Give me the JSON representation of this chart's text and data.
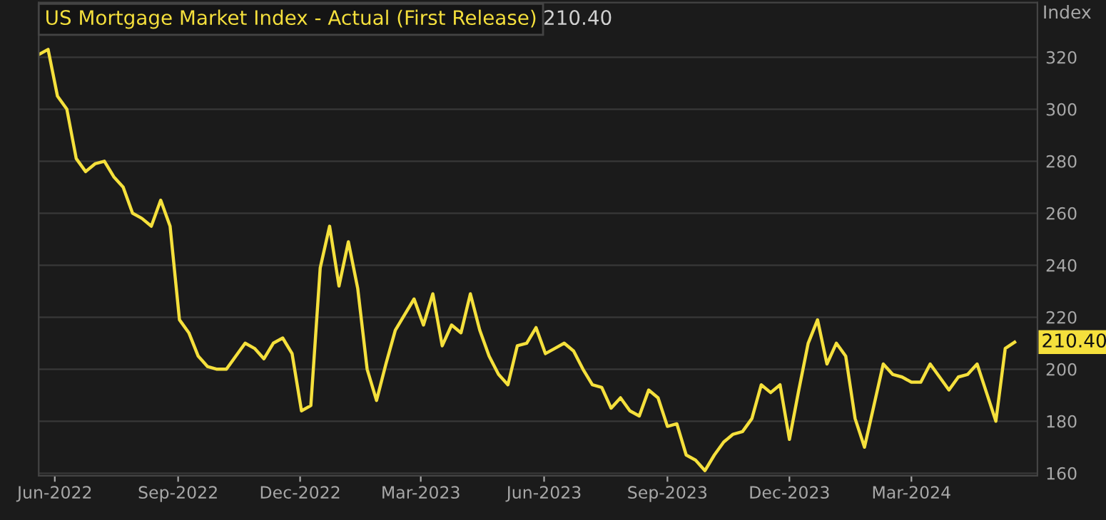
{
  "chart_data": {
    "type": "line",
    "title": "US Mortgage Market Index - Actual (First Release)",
    "ylabel": "Index",
    "x": [
      "2022-05-20",
      "2022-05-27",
      "2022-06-03",
      "2022-06-10",
      "2022-06-17",
      "2022-06-24",
      "2022-07-01",
      "2022-07-08",
      "2022-07-15",
      "2022-07-22",
      "2022-07-29",
      "2022-08-05",
      "2022-08-12",
      "2022-08-19",
      "2022-08-26",
      "2022-09-02",
      "2022-09-09",
      "2022-09-16",
      "2022-09-23",
      "2022-09-30",
      "2022-10-07",
      "2022-10-14",
      "2022-10-21",
      "2022-10-28",
      "2022-11-04",
      "2022-11-11",
      "2022-11-18",
      "2022-11-25",
      "2022-12-02",
      "2022-12-09",
      "2022-12-16",
      "2022-12-23",
      "2022-12-30",
      "2023-01-06",
      "2023-01-13",
      "2023-01-20",
      "2023-01-27",
      "2023-02-03",
      "2023-02-10",
      "2023-02-17",
      "2023-02-24",
      "2023-03-03",
      "2023-03-10",
      "2023-03-17",
      "2023-03-24",
      "2023-03-31",
      "2023-04-07",
      "2023-04-14",
      "2023-04-21",
      "2023-04-28",
      "2023-05-05",
      "2023-05-12",
      "2023-05-19",
      "2023-05-26",
      "2023-06-02",
      "2023-06-09",
      "2023-06-16",
      "2023-06-23",
      "2023-06-30",
      "2023-07-07",
      "2023-07-14",
      "2023-07-21",
      "2023-07-28",
      "2023-08-04",
      "2023-08-11",
      "2023-08-18",
      "2023-08-25",
      "2023-09-01",
      "2023-09-08",
      "2023-09-15",
      "2023-09-22",
      "2023-09-29",
      "2023-10-06",
      "2023-10-13",
      "2023-10-20",
      "2023-10-27",
      "2023-11-03",
      "2023-11-10",
      "2023-11-17",
      "2023-11-24",
      "2023-12-01",
      "2023-12-08",
      "2023-12-15",
      "2023-12-22",
      "2023-12-29",
      "2024-01-05",
      "2024-01-12",
      "2024-01-19",
      "2024-01-26",
      "2024-02-02",
      "2024-02-09",
      "2024-02-16",
      "2024-02-23",
      "2024-03-01",
      "2024-03-08",
      "2024-03-15",
      "2024-03-22",
      "2024-03-29",
      "2024-04-05",
      "2024-04-12",
      "2024-04-19",
      "2024-04-26",
      "2024-05-03",
      "2024-05-10",
      "2024-05-17"
    ],
    "series": [
      {
        "color": "#f5e03c",
        "values": [
          321,
          323,
          305,
          300,
          281,
          276,
          279,
          280,
          274,
          270,
          260,
          258,
          255,
          265,
          255,
          219,
          214,
          205,
          201,
          200,
          200,
          205,
          210,
          208,
          204,
          210,
          212,
          206,
          184,
          186,
          239,
          255,
          232,
          249,
          231,
          200,
          188,
          202,
          215,
          221,
          227,
          217,
          229,
          209,
          217,
          214,
          229,
          215,
          205,
          198,
          194,
          209,
          210,
          216,
          206,
          208,
          210,
          207,
          200,
          194,
          193,
          185,
          189,
          184,
          182,
          192,
          189,
          178,
          179,
          167,
          165,
          161,
          167,
          172,
          175,
          176,
          181,
          194,
          191,
          194,
          173,
          192,
          210,
          219,
          202,
          210,
          205,
          181,
          170,
          186,
          202,
          198,
          197,
          195,
          195,
          202,
          197,
          192,
          197,
          198,
          202,
          191,
          180,
          208,
          210.4
        ],
        "value_labels": [
          null,
          null,
          null,
          null,
          null,
          null,
          null,
          null,
          null,
          null,
          null,
          null,
          null,
          null,
          null,
          null,
          null,
          null,
          null,
          null,
          null,
          null,
          null,
          null,
          null,
          null,
          null,
          null,
          null,
          null,
          null,
          null,
          null,
          null,
          null,
          null,
          null,
          null,
          null,
          null,
          null,
          null,
          null,
          null,
          null,
          null,
          null,
          null,
          null,
          null,
          null,
          null,
          null,
          null,
          null,
          null,
          null,
          null,
          null,
          null,
          null,
          null,
          null,
          null,
          null,
          null,
          null,
          null,
          null,
          null,
          null,
          null,
          null,
          null,
          null,
          null,
          null,
          null,
          null,
          null,
          null,
          null,
          null,
          null,
          null,
          null,
          null,
          null,
          null,
          null,
          null,
          null,
          null,
          null,
          null,
          null,
          null,
          null,
          null,
          null,
          null,
          null,
          null,
          null,
          "210.40"
        ]
      }
    ],
    "xlim": [
      "2022-05-20",
      "2024-06-03"
    ],
    "xticks": [
      {
        "value": "2022-06-01",
        "label": "Jun-2022"
      },
      {
        "value": "2022-09-01",
        "label": "Sep-2022"
      },
      {
        "value": "2022-12-01",
        "label": "Dec-2022"
      },
      {
        "value": "2023-03-01",
        "label": "Mar-2023"
      },
      {
        "value": "2023-06-01",
        "label": "Jun-2023"
      },
      {
        "value": "2023-09-01",
        "label": "Sep-2023"
      },
      {
        "value": "2023-12-01",
        "label": "Dec-2023"
      },
      {
        "value": "2024-03-01",
        "label": "Mar-2024"
      }
    ],
    "ylim": [
      159,
      341
    ],
    "yticks": [
      160,
      180,
      200,
      220,
      240,
      260,
      280,
      300,
      320
    ],
    "grid": "y",
    "legend": false,
    "marker": "none",
    "line_style": "solid"
  }
}
